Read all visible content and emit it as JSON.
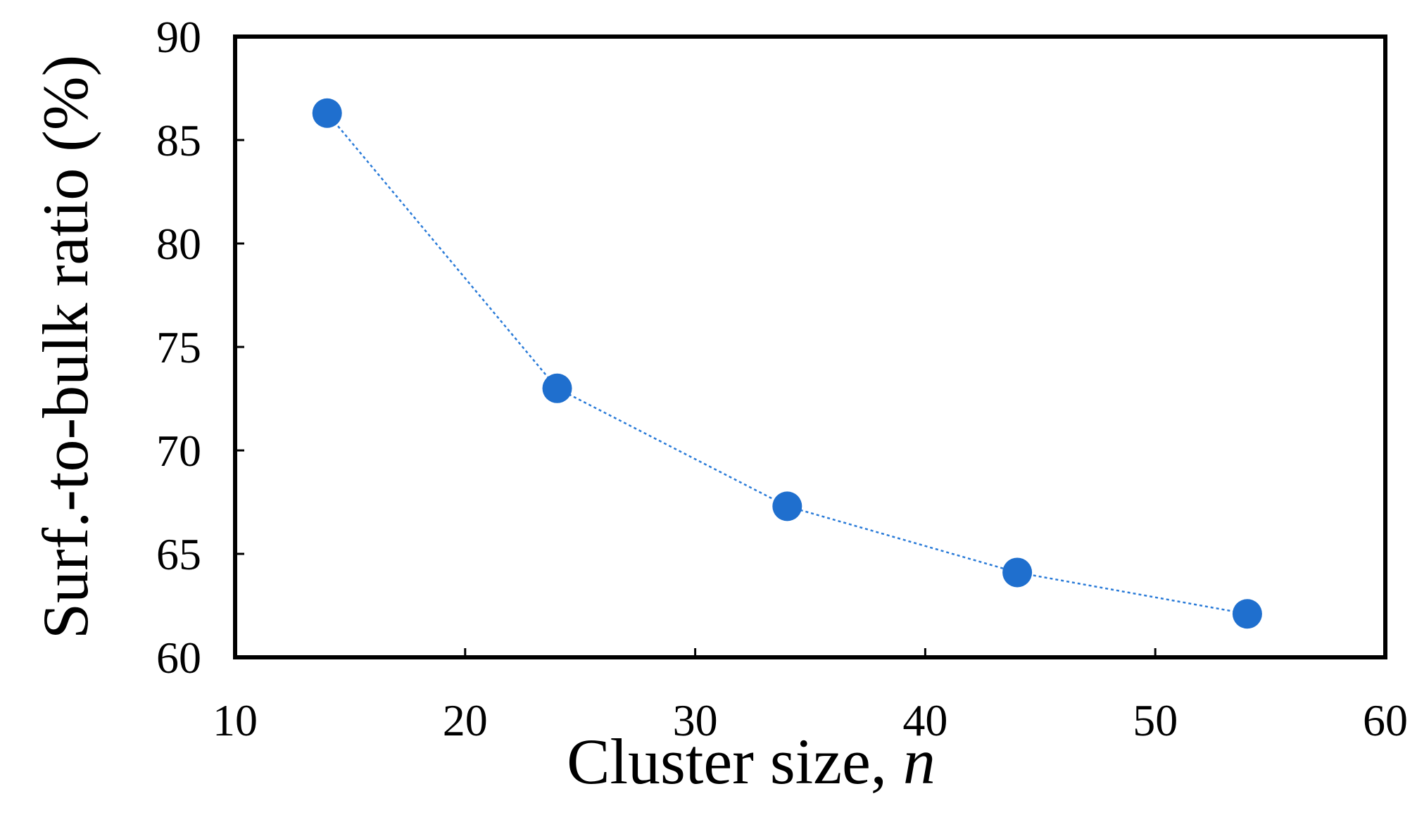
{
  "chart_data": {
    "type": "scatter",
    "title": "",
    "xlabel": "Cluster size, ",
    "xlabel_italic": "n",
    "ylabel": "Surf.-to-bulk ratio (%)",
    "xlim": [
      10,
      60
    ],
    "ylim": [
      60,
      90
    ],
    "x_ticks": [
      10,
      20,
      30,
      40,
      50,
      60
    ],
    "y_ticks": [
      60,
      65,
      70,
      75,
      80,
      85,
      90
    ],
    "x_tick_labels": [
      "10",
      "20",
      "30",
      "40",
      "50",
      "60"
    ],
    "y_tick_labels": [
      "60",
      "65",
      "70",
      "75",
      "80",
      "85",
      "90"
    ],
    "grid": false,
    "connector_line": "dotted",
    "marker_color": "#1f6fce",
    "line_color": "#2a7bd8",
    "series": [
      {
        "x": [
          14,
          24,
          34,
          44,
          54
        ],
        "y": [
          86.3,
          73.0,
          67.3,
          64.1,
          62.1
        ]
      }
    ]
  }
}
